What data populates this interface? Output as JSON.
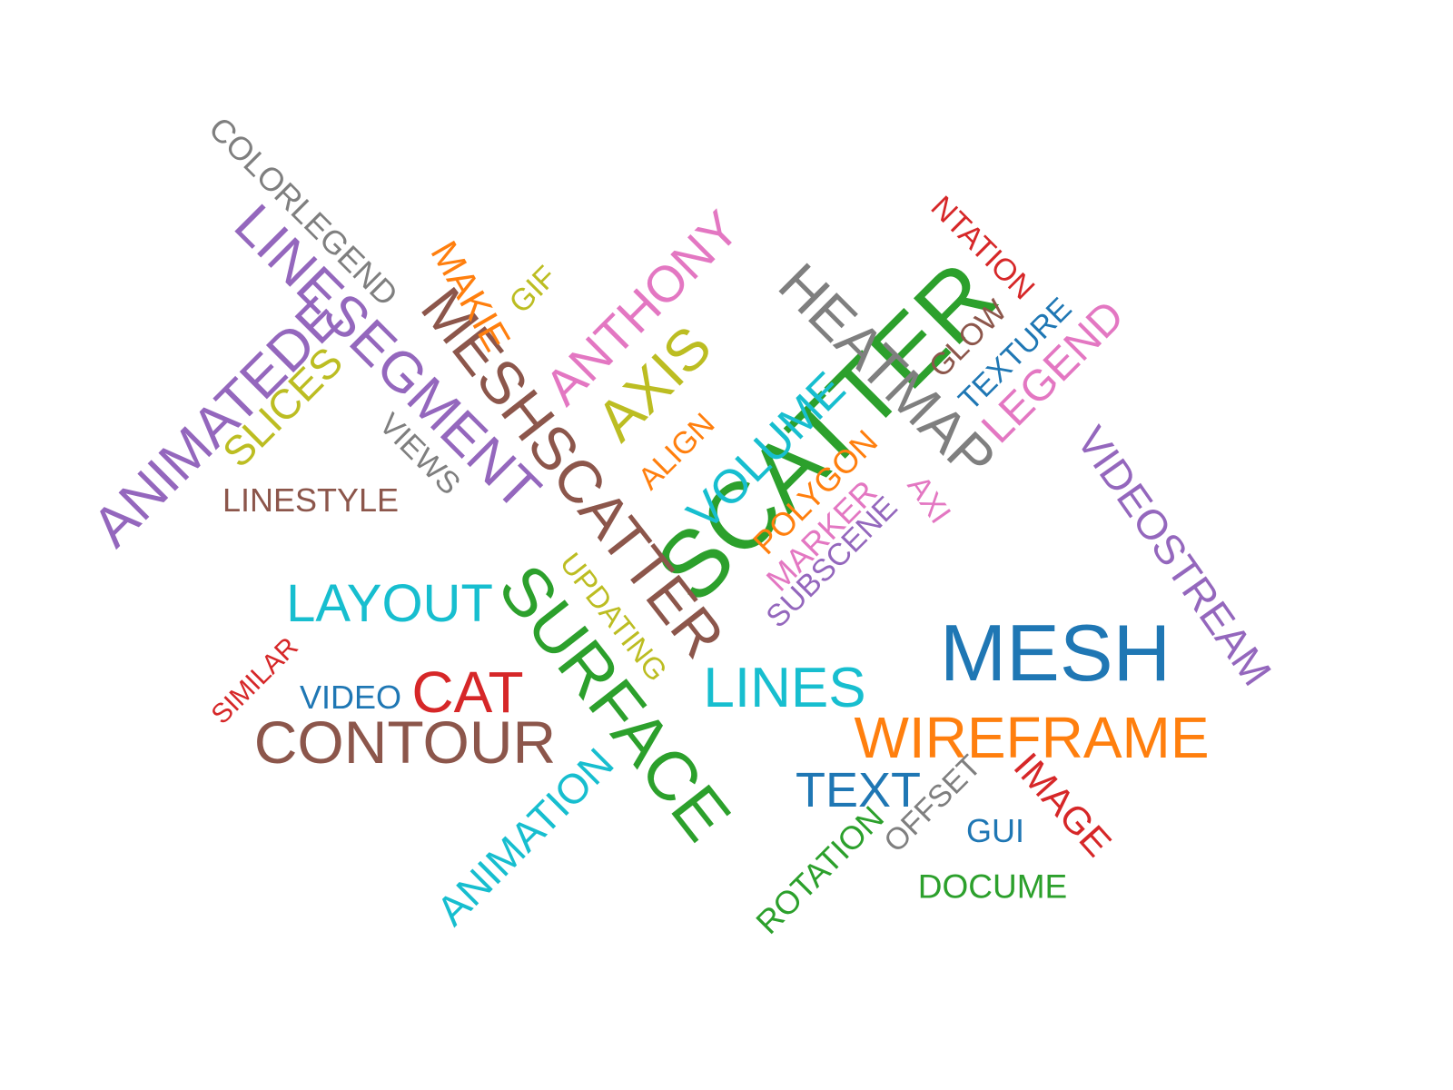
{
  "palette": {
    "blue": "#1f77b4",
    "orange": "#ff7f0e",
    "green": "#2ca02c",
    "red": "#d62728",
    "purple": "#9467bd",
    "brown": "#8c564b",
    "pink": "#e377c2",
    "gray": "#7f7f7f",
    "olive": "#bcbd22",
    "cyan": "#17becf"
  },
  "words": [
    {
      "text": "SCATTER",
      "color": "green"
    },
    {
      "text": "MESH",
      "color": "blue"
    },
    {
      "text": "WIREFRAME",
      "color": "orange"
    },
    {
      "text": "TEXT",
      "color": "blue"
    },
    {
      "text": "LINES",
      "color": "cyan"
    },
    {
      "text": "CONTOUR",
      "color": "brown"
    },
    {
      "text": "CAT",
      "color": "red"
    },
    {
      "text": "VIDEO",
      "color": "blue"
    },
    {
      "text": "LAYOUT",
      "color": "cyan"
    },
    {
      "text": "LINESTYLE",
      "color": "brown"
    },
    {
      "text": "DOCUME",
      "color": "green"
    },
    {
      "text": "GUI",
      "color": "blue"
    },
    {
      "text": "SURFACE",
      "color": "green"
    },
    {
      "text": "MESHSCATTER",
      "color": "brown"
    },
    {
      "text": "HEATMAP",
      "color": "gray"
    },
    {
      "text": "LINESEGMENT",
      "color": "purple"
    },
    {
      "text": "COLORLEGEND",
      "color": "gray"
    },
    {
      "text": "MAKIE",
      "color": "orange"
    },
    {
      "text": "VIEWS",
      "color": "gray"
    },
    {
      "text": "UPDATING",
      "color": "olive"
    },
    {
      "text": "VIDEOSTREAM",
      "color": "purple"
    },
    {
      "text": "NTATION",
      "color": "red"
    },
    {
      "text": "IMAGE",
      "color": "red"
    },
    {
      "text": "ANIMATEDE",
      "color": "purple"
    },
    {
      "text": "SLICES",
      "color": "olive"
    },
    {
      "text": "ANTHONY",
      "color": "pink"
    },
    {
      "text": "AXIS",
      "color": "olive"
    },
    {
      "text": "GIF",
      "color": "olive"
    },
    {
      "text": "ALIGN",
      "color": "orange"
    },
    {
      "text": "VOLUME",
      "color": "cyan"
    },
    {
      "text": "POLYGON",
      "color": "orange"
    },
    {
      "text": "MARKER",
      "color": "pink"
    },
    {
      "text": "SUBSCENE",
      "color": "purple"
    },
    {
      "text": "LEGEND",
      "color": "pink"
    },
    {
      "text": "TEXTURE",
      "color": "blue"
    },
    {
      "text": "GLOW",
      "color": "brown"
    },
    {
      "text": "ANIMATION",
      "color": "cyan"
    },
    {
      "text": "SIMILAR",
      "color": "red"
    },
    {
      "text": "ROTATION",
      "color": "green"
    },
    {
      "text": "OFFSET",
      "color": "gray"
    },
    {
      "text": "AXI",
      "color": "pink"
    }
  ]
}
